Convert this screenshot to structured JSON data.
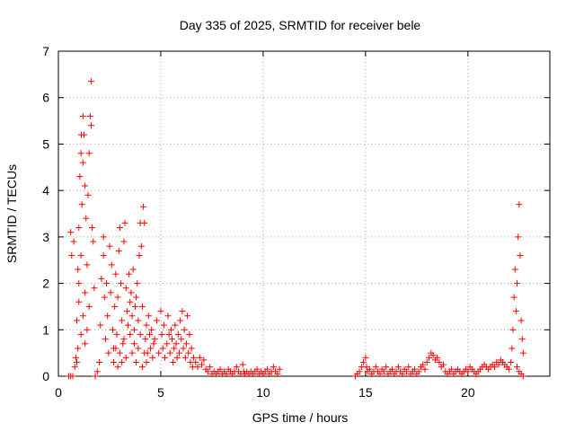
{
  "chart_data": {
    "type": "scatter",
    "title": "Day 335 of 2025, SRMTID for receiver bele",
    "xlabel": "GPS time / hours",
    "ylabel": "SRMTID / TECUs",
    "xlim": [
      0,
      24
    ],
    "ylim": [
      0,
      7
    ],
    "xticks": [
      0,
      5,
      10,
      15,
      20
    ],
    "yticks": [
      0,
      1,
      2,
      3,
      4,
      5,
      6,
      7
    ],
    "grid": true,
    "marker": "+",
    "series": [
      {
        "name": "SRMTID",
        "color": "#ff0000",
        "points": [
          [
            0.5,
            0.0
          ],
          [
            0.6,
            0.0
          ],
          [
            0.7,
            0.0
          ],
          [
            0.65,
            2.6
          ],
          [
            0.6,
            3.1
          ],
          [
            0.75,
            2.9
          ],
          [
            0.8,
            0.2
          ],
          [
            0.85,
            0.4
          ],
          [
            0.9,
            1.2
          ],
          [
            0.95,
            2.3
          ],
          [
            1.0,
            2.0
          ],
          [
            1.0,
            3.2
          ],
          [
            1.05,
            4.3
          ],
          [
            1.1,
            2.6
          ],
          [
            1.1,
            4.8
          ],
          [
            1.12,
            5.2
          ],
          [
            1.15,
            3.7
          ],
          [
            1.2,
            4.6
          ],
          [
            1.2,
            5.6
          ],
          [
            1.25,
            5.2
          ],
          [
            1.3,
            4.1
          ],
          [
            1.3,
            1.8
          ],
          [
            1.35,
            3.4
          ],
          [
            1.4,
            2.4
          ],
          [
            1.45,
            3.9
          ],
          [
            1.5,
            4.8
          ],
          [
            1.55,
            5.6
          ],
          [
            1.6,
            5.4
          ],
          [
            1.6,
            6.35
          ],
          [
            1.65,
            3.2
          ],
          [
            1.7,
            2.9
          ],
          [
            1.75,
            1.9
          ],
          [
            1.5,
            1.5
          ],
          [
            1.4,
            1.0
          ],
          [
            1.3,
            0.7
          ],
          [
            1.2,
            1.3
          ],
          [
            1.1,
            0.9
          ],
          [
            1.0,
            1.6
          ],
          [
            0.95,
            0.6
          ],
          [
            0.9,
            0.3
          ],
          [
            1.8,
            0.0
          ],
          [
            1.9,
            0.1
          ],
          [
            2.0,
            0.3
          ],
          [
            2.05,
            1.1
          ],
          [
            2.1,
            2.1
          ],
          [
            2.2,
            2.6
          ],
          [
            2.2,
            3.0
          ],
          [
            2.25,
            1.7
          ],
          [
            2.3,
            0.8
          ],
          [
            2.35,
            2.0
          ],
          [
            2.4,
            1.3
          ],
          [
            2.45,
            0.5
          ],
          [
            2.5,
            2.8
          ],
          [
            2.55,
            1.8
          ],
          [
            2.6,
            2.4
          ],
          [
            2.65,
            1.0
          ],
          [
            2.7,
            0.6
          ],
          [
            2.75,
            1.5
          ],
          [
            2.8,
            2.2
          ],
          [
            2.85,
            0.9
          ],
          [
            2.9,
            1.7
          ],
          [
            2.95,
            2.7
          ],
          [
            3.0,
            3.2
          ],
          [
            3.05,
            2.0
          ],
          [
            3.1,
            1.2
          ],
          [
            3.15,
            0.7
          ],
          [
            3.2,
            2.9
          ],
          [
            3.25,
            3.3
          ],
          [
            3.3,
            1.9
          ],
          [
            3.35,
            1.4
          ],
          [
            3.4,
            1.1
          ],
          [
            3.45,
            2.2
          ],
          [
            3.5,
            1.6
          ],
          [
            3.55,
            1.8
          ],
          [
            3.6,
            1.3
          ],
          [
            3.65,
            2.3
          ],
          [
            3.7,
            1.0
          ],
          [
            3.75,
            1.5
          ],
          [
            3.8,
            1.7
          ],
          [
            3.85,
            2.0
          ],
          [
            3.9,
            1.2
          ],
          [
            3.95,
            2.6
          ],
          [
            4.0,
            3.3
          ],
          [
            4.05,
            2.8
          ],
          [
            4.1,
            1.5
          ],
          [
            4.15,
            3.65
          ],
          [
            4.2,
            3.3
          ],
          [
            4.25,
            0.8
          ],
          [
            4.3,
            1.1
          ],
          [
            4.35,
            0.5
          ],
          [
            4.4,
            1.3
          ],
          [
            4.45,
            0.9
          ],
          [
            4.5,
            0.6
          ],
          [
            4.55,
            1.0
          ],
          [
            4.6,
            0.4
          ],
          [
            4.65,
            0.7
          ],
          [
            3.3,
            0.4
          ],
          [
            3.2,
            0.8
          ],
          [
            3.1,
            0.3
          ],
          [
            3.0,
            0.5
          ],
          [
            2.9,
            0.2
          ],
          [
            2.8,
            0.6
          ],
          [
            2.7,
            0.3
          ],
          [
            3.5,
            0.9
          ],
          [
            3.6,
            0.5
          ],
          [
            3.7,
            0.7
          ],
          [
            3.8,
            0.3
          ],
          [
            3.9,
            0.6
          ],
          [
            4.0,
            0.9
          ],
          [
            4.1,
            0.2
          ],
          [
            4.2,
            0.5
          ],
          [
            4.3,
            0.3
          ],
          [
            4.7,
            0.8
          ],
          [
            4.8,
            1.2
          ],
          [
            4.9,
            0.5
          ],
          [
            5.0,
            1.4
          ],
          [
            5.05,
            0.9
          ],
          [
            5.1,
            0.6
          ],
          [
            5.15,
            1.1
          ],
          [
            5.2,
            0.4
          ],
          [
            5.3,
            0.7
          ],
          [
            5.35,
            1.3
          ],
          [
            5.4,
            0.9
          ],
          [
            5.45,
            0.5
          ],
          [
            5.5,
            1.0
          ],
          [
            5.55,
            0.8
          ],
          [
            5.6,
            0.3
          ],
          [
            5.65,
            0.6
          ],
          [
            5.7,
            1.1
          ],
          [
            5.75,
            0.7
          ],
          [
            5.8,
            0.4
          ],
          [
            5.85,
            0.9
          ],
          [
            5.9,
            0.5
          ],
          [
            5.95,
            1.2
          ],
          [
            6.0,
            0.8
          ],
          [
            6.05,
            1.4
          ],
          [
            6.1,
            0.6
          ],
          [
            6.15,
            1.0
          ],
          [
            6.2,
            0.4
          ],
          [
            6.25,
            0.7
          ],
          [
            6.3,
            1.3
          ],
          [
            6.35,
            0.5
          ],
          [
            6.4,
            0.9
          ],
          [
            6.45,
            0.3
          ],
          [
            6.5,
            0.6
          ],
          [
            6.55,
            0.2
          ],
          [
            6.6,
            0.4
          ],
          [
            6.7,
            0.3
          ],
          [
            6.8,
            0.2
          ],
          [
            6.9,
            0.4
          ],
          [
            7.0,
            0.25
          ],
          [
            7.1,
            0.35
          ],
          [
            7.2,
            0.15
          ],
          [
            7.3,
            0.1
          ],
          [
            7.4,
            0.2
          ],
          [
            7.5,
            0.05
          ],
          [
            7.6,
            0.1
          ],
          [
            7.7,
            0.05
          ],
          [
            7.8,
            0.1
          ],
          [
            7.9,
            0.15
          ],
          [
            8.0,
            0.05
          ],
          [
            8.1,
            0.1
          ],
          [
            8.2,
            0.05
          ],
          [
            8.3,
            0.15
          ],
          [
            8.4,
            0.1
          ],
          [
            8.5,
            0.05
          ],
          [
            8.6,
            0.1
          ],
          [
            8.7,
            0.2
          ],
          [
            8.8,
            0.1
          ],
          [
            8.9,
            0.05
          ],
          [
            9.0,
            0.25
          ],
          [
            9.05,
            0.1
          ],
          [
            9.1,
            0.05
          ],
          [
            9.2,
            0.1
          ],
          [
            9.3,
            0.05
          ],
          [
            9.4,
            0.1
          ],
          [
            9.5,
            0.05
          ],
          [
            9.6,
            0.1
          ],
          [
            9.7,
            0.15
          ],
          [
            9.8,
            0.05
          ],
          [
            9.9,
            0.1
          ],
          [
            10.0,
            0.05
          ],
          [
            10.1,
            0.1
          ],
          [
            10.2,
            0.15
          ],
          [
            10.3,
            0.05
          ],
          [
            10.4,
            0.1
          ],
          [
            10.5,
            0.2
          ],
          [
            10.6,
            0.1
          ],
          [
            10.7,
            0.05
          ],
          [
            10.8,
            0.15
          ],
          [
            14.5,
            0.0
          ],
          [
            14.6,
            0.05
          ],
          [
            14.7,
            0.1
          ],
          [
            14.8,
            0.2
          ],
          [
            14.9,
            0.3
          ],
          [
            15.0,
            0.4
          ],
          [
            15.05,
            0.2
          ],
          [
            15.1,
            0.1
          ],
          [
            15.2,
            0.15
          ],
          [
            15.3,
            0.05
          ],
          [
            15.4,
            0.1
          ],
          [
            15.5,
            0.2
          ],
          [
            15.6,
            0.1
          ],
          [
            15.7,
            0.05
          ],
          [
            15.8,
            0.15
          ],
          [
            15.9,
            0.1
          ],
          [
            16.0,
            0.2
          ],
          [
            16.1,
            0.05
          ],
          [
            16.2,
            0.1
          ],
          [
            16.3,
            0.15
          ],
          [
            16.4,
            0.05
          ],
          [
            16.5,
            0.1
          ],
          [
            16.6,
            0.2
          ],
          [
            16.7,
            0.1
          ],
          [
            16.8,
            0.05
          ],
          [
            16.9,
            0.15
          ],
          [
            17.0,
            0.1
          ],
          [
            17.1,
            0.2
          ],
          [
            17.2,
            0.05
          ],
          [
            17.3,
            0.1
          ],
          [
            17.4,
            0.15
          ],
          [
            17.5,
            0.05
          ],
          [
            17.6,
            0.1
          ],
          [
            17.7,
            0.2
          ],
          [
            17.8,
            0.25
          ],
          [
            17.9,
            0.15
          ],
          [
            18.0,
            0.3
          ],
          [
            18.1,
            0.4
          ],
          [
            18.2,
            0.5
          ],
          [
            18.3,
            0.45
          ],
          [
            18.4,
            0.35
          ],
          [
            18.5,
            0.4
          ],
          [
            18.6,
            0.3
          ],
          [
            18.7,
            0.2
          ],
          [
            18.8,
            0.25
          ],
          [
            18.9,
            0.1
          ],
          [
            19.0,
            0.05
          ],
          [
            19.1,
            0.1
          ],
          [
            19.2,
            0.15
          ],
          [
            19.3,
            0.05
          ],
          [
            19.4,
            0.1
          ],
          [
            19.5,
            0.15
          ],
          [
            19.6,
            0.1
          ],
          [
            19.7,
            0.05
          ],
          [
            19.8,
            0.1
          ],
          [
            19.9,
            0.15
          ],
          [
            20.0,
            0.1
          ],
          [
            20.1,
            0.2
          ],
          [
            20.2,
            0.15
          ],
          [
            20.3,
            0.1
          ],
          [
            20.4,
            0.05
          ],
          [
            20.5,
            0.1
          ],
          [
            20.6,
            0.15
          ],
          [
            20.7,
            0.2
          ],
          [
            20.8,
            0.25
          ],
          [
            20.9,
            0.2
          ],
          [
            21.0,
            0.15
          ],
          [
            21.1,
            0.2
          ],
          [
            21.2,
            0.25
          ],
          [
            21.3,
            0.2
          ],
          [
            21.4,
            0.3
          ],
          [
            21.5,
            0.25
          ],
          [
            21.6,
            0.35
          ],
          [
            21.7,
            0.3
          ],
          [
            21.8,
            0.25
          ],
          [
            21.9,
            0.2
          ],
          [
            22.0,
            0.15
          ],
          [
            22.1,
            0.3
          ],
          [
            22.15,
            0.6
          ],
          [
            22.2,
            1.0
          ],
          [
            22.25,
            1.7
          ],
          [
            22.3,
            2.3
          ],
          [
            22.35,
            1.4
          ],
          [
            22.4,
            2.0
          ],
          [
            22.45,
            3.0
          ],
          [
            22.5,
            3.7
          ],
          [
            22.55,
            2.6
          ],
          [
            22.6,
            1.2
          ],
          [
            22.65,
            0.8
          ],
          [
            22.7,
            0.5
          ],
          [
            22.4,
            0.2
          ],
          [
            22.5,
            0.1
          ],
          [
            22.6,
            0.05
          ],
          [
            22.7,
            0.0
          ]
        ]
      }
    ]
  }
}
